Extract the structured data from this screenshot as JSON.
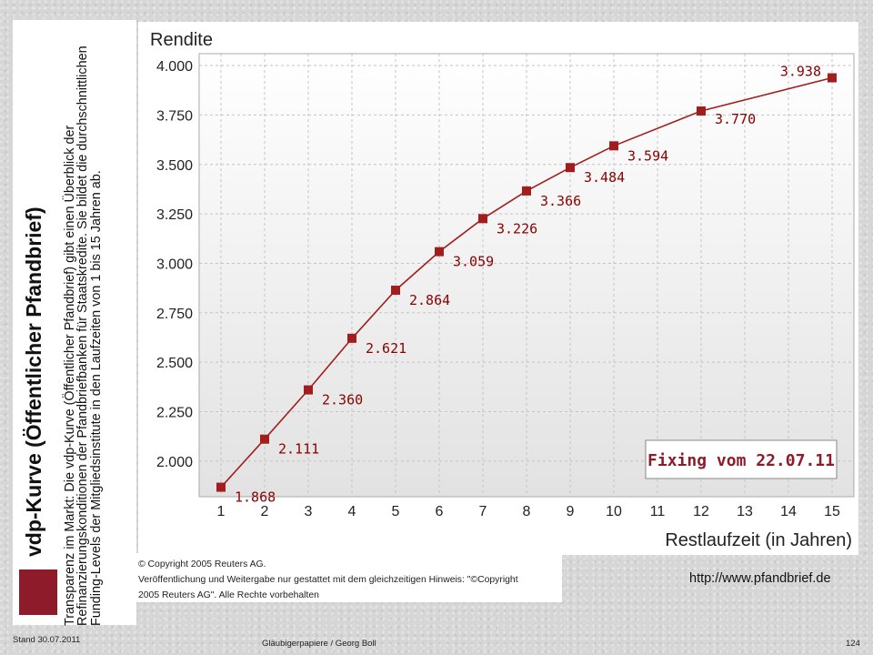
{
  "slide": {
    "title": "vdp-Kurve (Öffentlicher Pfandbrief)",
    "description": "Transparenz im Markt: Die vdp-Kurve (Öffentlicher Pfandbrief) gibt einen Überblick der Refinanzierungskonditionen der Pfandbriefbanken für Staatskredite. Sie bildet die durchschnittlichen Funding-Levels der Mitgliedsinstitute in den Laufzeiten von 1 bis 15 Jahren ab.",
    "copyright_line1": "© Copyright 2005 Reuters AG.",
    "copyright_line2": "Veröffentlichung und Weitergabe nur gestattet mit dem gleichzeitigen Hinweis: \"©Copyright",
    "copyright_line3": "2005 Reuters AG\". Alle Rechte vorbehalten",
    "url": "http://www.pfandbrief.de",
    "footer_date": "Stand 30.07.2011",
    "footer_center": "Gläubigerpapiere / Georg Boll",
    "page_number": "124"
  },
  "colors": {
    "accent": "#8e1b2a",
    "line": "#a01e1e",
    "label": "#8b0000"
  },
  "chart_data": {
    "type": "line",
    "title": "Rendite",
    "xlabel": "Restlaufzeit (in Jahren)",
    "ylabel": "Rendite",
    "x": [
      1,
      2,
      3,
      4,
      5,
      6,
      7,
      8,
      9,
      10,
      12,
      15
    ],
    "values": [
      1.868,
      2.111,
      2.36,
      2.621,
      2.864,
      3.059,
      3.226,
      3.366,
      3.484,
      3.594,
      3.77,
      3.938
    ],
    "value_labels": [
      "1.868",
      "2.111",
      "2.360",
      "2.621",
      "2.864",
      "3.059",
      "3.226",
      "3.366",
      "3.484",
      "3.594",
      "3.770",
      "3.938"
    ],
    "x_ticks": [
      "1",
      "2",
      "3",
      "4",
      "5",
      "6",
      "7",
      "8",
      "9",
      "10",
      "11",
      "12",
      "13",
      "14",
      "15"
    ],
    "y_ticks": [
      "2.000",
      "2.250",
      "2.500",
      "2.750",
      "3.000",
      "3.250",
      "3.500",
      "3.750",
      "4.000"
    ],
    "y_tick_values": [
      2.0,
      2.25,
      2.5,
      2.75,
      3.0,
      3.25,
      3.5,
      3.75,
      4.0
    ],
    "xlim": [
      0.5,
      15.5
    ],
    "ylim": [
      1.82,
      4.06
    ],
    "grid": true,
    "annotation": "Fixing vom 22.07.11"
  }
}
